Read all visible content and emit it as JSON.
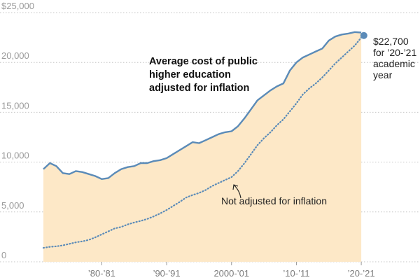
{
  "chart_data": {
    "type": "area",
    "title_lines": [
      "Average cost of public",
      "higher education",
      "adjusted for inflation"
    ],
    "ylim": [
      0,
      25000
    ],
    "y_ticks": [
      {
        "value": 0,
        "label": "0"
      },
      {
        "value": 5000,
        "label": "5,000"
      },
      {
        "value": 10000,
        "label": "10,000"
      },
      {
        "value": 15000,
        "label": "15,000"
      },
      {
        "value": 20000,
        "label": "20,000"
      },
      {
        "value": 25000,
        "label": "$25,000"
      }
    ],
    "x_range": [
      1971,
      2021.5
    ],
    "x_ticks": [
      {
        "value": 1980,
        "label": "’80-’81"
      },
      {
        "value": 1990,
        "label": "’90-’91"
      },
      {
        "value": 2000,
        "label": "2000-’01"
      },
      {
        "value": 2010,
        "label": "’10-’11"
      },
      {
        "value": 2020,
        "label": "’20-’21"
      }
    ],
    "x": [
      1971,
      1972,
      1973,
      1974,
      1975,
      1976,
      1977,
      1978,
      1979,
      1980,
      1981,
      1982,
      1983,
      1984,
      1985,
      1986,
      1987,
      1988,
      1989,
      1990,
      1991,
      1992,
      1993,
      1994,
      1995,
      1996,
      1997,
      1998,
      1999,
      2000,
      2001,
      2002,
      2003,
      2004,
      2005,
      2006,
      2007,
      2008,
      2009,
      2010,
      2011,
      2012,
      2013,
      2014,
      2015,
      2016,
      2017,
      2018,
      2019,
      2020
    ],
    "series": [
      {
        "name": "Adjusted for inflation",
        "style": "solid",
        "values": [
          9300,
          9900,
          9600,
          8900,
          8800,
          9100,
          9000,
          8800,
          8600,
          8300,
          8400,
          8900,
          9300,
          9500,
          9600,
          9900,
          9900,
          10100,
          10200,
          10400,
          10800,
          11200,
          11600,
          12000,
          11900,
          12200,
          12500,
          12800,
          13000,
          13100,
          13600,
          14400,
          15300,
          16200,
          16700,
          17200,
          17600,
          17900,
          19200,
          20000,
          20500,
          20800,
          21100,
          21400,
          22200,
          22600,
          22800,
          22900,
          23050,
          23000
        ]
      },
      {
        "name": "Not adjusted for inflation",
        "style": "dotted",
        "values": [
          1400,
          1500,
          1550,
          1650,
          1800,
          1950,
          2050,
          2200,
          2450,
          2750,
          3050,
          3350,
          3500,
          3750,
          3950,
          4100,
          4300,
          4550,
          4850,
          5200,
          5600,
          6000,
          6450,
          6700,
          6900,
          7200,
          7600,
          7900,
          8200,
          8500,
          9100,
          9900,
          10800,
          11700,
          12400,
          13000,
          13700,
          14300,
          15100,
          15900,
          16800,
          17400,
          17900,
          18500,
          19200,
          19900,
          20500,
          21100,
          21700,
          22500
        ]
      }
    ],
    "end_point": {
      "x": 2020.4,
      "y": 22700
    },
    "end_label_lines": [
      "$22,700",
      "for ’20-’21",
      "academic",
      "year"
    ],
    "annotation_note": "Not adjusted for inflation",
    "colors": {
      "area_fill": "#fde8c7",
      "line": "#5b8bb8",
      "dotted": "#5b8bb8",
      "dot": "#5b8bb8"
    }
  }
}
